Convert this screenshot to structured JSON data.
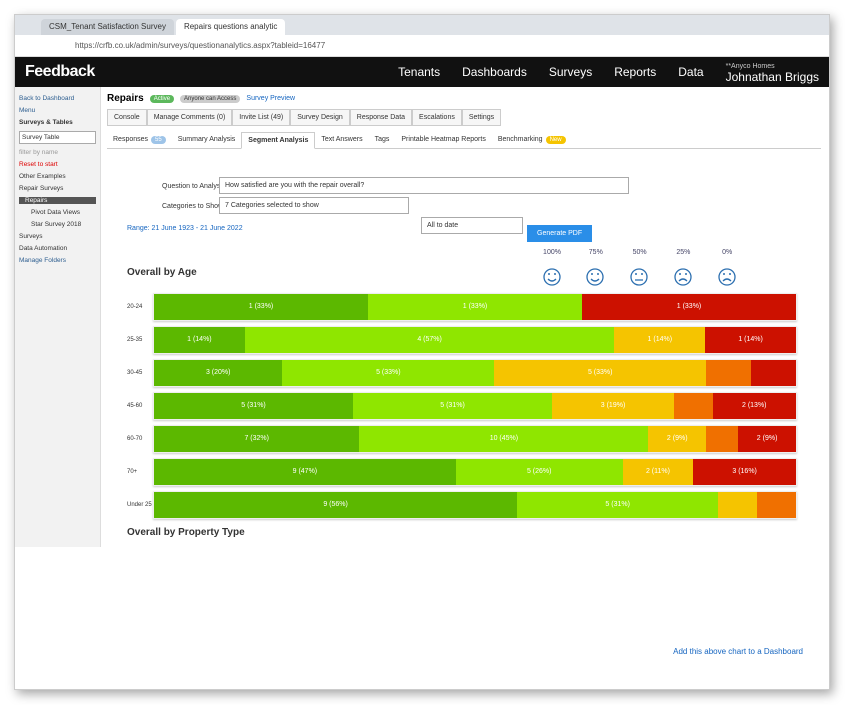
{
  "browser": {
    "tabs": [
      "CSM_Tenant Satisfaction Survey",
      "Repairs questions analytic"
    ],
    "url": "https://crfb.co.uk/admin/surveys/questionanalytics.aspx?tableid=16477"
  },
  "navbar": {
    "logo": "Feedback",
    "items": [
      "Tenants",
      "Dashboards",
      "Surveys",
      "Reports",
      "Data"
    ],
    "org": "**Anyco Homes",
    "user": "Johnathan Briggs"
  },
  "sidebar": {
    "back": "Back to Dashboard",
    "menu": "Menu",
    "section": "Surveys & Tables",
    "select": "Survey Table",
    "filter": "filter by name",
    "reset": "Reset to start",
    "tree": [
      "Other Examples",
      "Repair Surveys",
      "Repairs",
      "Pivot Data Views",
      "Star Survey 2018",
      "Surveys",
      "Data Automation"
    ],
    "manage": "Manage Folders"
  },
  "header": {
    "title": "Repairs",
    "badges": [
      "Active",
      "Anyone can Access"
    ],
    "preview": "Survey Preview"
  },
  "toolbar": [
    "Console",
    "Manage Comments (0)",
    "Invite List (49)",
    "Survey Design",
    "Response Data",
    "Escalations",
    "Settings"
  ],
  "tabs": {
    "items": [
      "Responses",
      "Summary Analysis",
      "Segment Analysis",
      "Text Answers",
      "Tags",
      "Printable Heatmap Reports",
      "Benchmarking"
    ],
    "responses_badge": 55,
    "new_badge": "New"
  },
  "form": {
    "question_label": "Question to Analyse:",
    "question": "How satisfied are you with the repair overall?",
    "categories_label": "Categories to Show:",
    "categories": "7 Categories selected to show",
    "period": "All to date",
    "pdf": "Generate PDF",
    "range": "Range: 21 June 1923 - 21 June 2022"
  },
  "chart": {
    "title": "Overall by Age",
    "legend": [
      {
        "label": "100%",
        "color": "#5cb800"
      },
      {
        "label": "75%",
        "color": "#8fe600"
      },
      {
        "label": "50%",
        "color": "#f5c400"
      },
      {
        "label": "25%",
        "color": "#f07000"
      },
      {
        "label": "0%",
        "color": "#cc1100"
      }
    ],
    "rows": [
      {
        "name": "20-24",
        "segments": [
          {
            "percent": 33,
            "label": "1 (33%)",
            "color": "#5cb800"
          },
          {
            "percent": 33,
            "label": "1 (33%)",
            "color": "#8fe600"
          },
          {
            "percent": 33,
            "label": "1 (33%)",
            "color": "#cc1100"
          }
        ]
      },
      {
        "name": "25-35",
        "segments": [
          {
            "percent": 14,
            "label": "1 (14%)",
            "color": "#5cb800"
          },
          {
            "percent": 57,
            "label": "4 (57%)",
            "color": "#8fe600"
          },
          {
            "percent": 14,
            "label": "1 (14%)",
            "color": "#f5c400"
          },
          {
            "percent": 14,
            "label": "1 (14%)",
            "color": "#cc1100"
          }
        ]
      },
      {
        "name": "30-45",
        "segments": [
          {
            "percent": 20,
            "label": "3 (20%)",
            "color": "#5cb800"
          },
          {
            "percent": 33,
            "label": "5 (33%)",
            "color": "#8fe600"
          },
          {
            "percent": 33,
            "label": "5 (33%)",
            "color": "#f5c400"
          },
          {
            "percent": 7,
            "color": "#f07000"
          },
          {
            "percent": 7,
            "color": "#cc1100"
          }
        ]
      },
      {
        "name": "45-60",
        "segments": [
          {
            "percent": 31,
            "label": "5 (31%)",
            "color": "#5cb800"
          },
          {
            "percent": 31,
            "label": "5 (31%)",
            "color": "#8fe600"
          },
          {
            "percent": 19,
            "label": "3 (19%)",
            "color": "#f5c400"
          },
          {
            "percent": 6,
            "color": "#f07000"
          },
          {
            "percent": 13,
            "label": "2 (13%)",
            "color": "#cc1100"
          }
        ]
      },
      {
        "name": "60-70",
        "segments": [
          {
            "percent": 32,
            "label": "7 (32%)",
            "color": "#5cb800"
          },
          {
            "percent": 45,
            "label": "10 (45%)",
            "color": "#8fe600"
          },
          {
            "percent": 9,
            "label": "2 (9%)",
            "color": "#f5c400"
          },
          {
            "percent": 5,
            "color": "#f07000"
          },
          {
            "percent": 9,
            "label": "2 (9%)",
            "color": "#cc1100"
          }
        ]
      },
      {
        "name": "70+",
        "segments": [
          {
            "percent": 47,
            "label": "9 (47%)",
            "color": "#5cb800"
          },
          {
            "percent": 26,
            "label": "5 (26%)",
            "color": "#8fe600"
          },
          {
            "percent": 11,
            "label": "2 (11%)",
            "color": "#f5c400"
          },
          {
            "percent": 16,
            "label": "3 (16%)",
            "color": "#cc1100"
          }
        ]
      },
      {
        "name": "Under 25",
        "segments": [
          {
            "percent": 56,
            "label": "9 (56%)",
            "color": "#5cb800"
          },
          {
            "percent": 31,
            "label": "5 (31%)",
            "color": "#8fe600"
          },
          {
            "percent": 6,
            "color": "#f5c400"
          },
          {
            "percent": 6,
            "color": "#f07000"
          }
        ]
      }
    ]
  },
  "next_chart_title": "Overall by Property Type",
  "dashboard_link": "Add this above chart to a Dashboard"
}
